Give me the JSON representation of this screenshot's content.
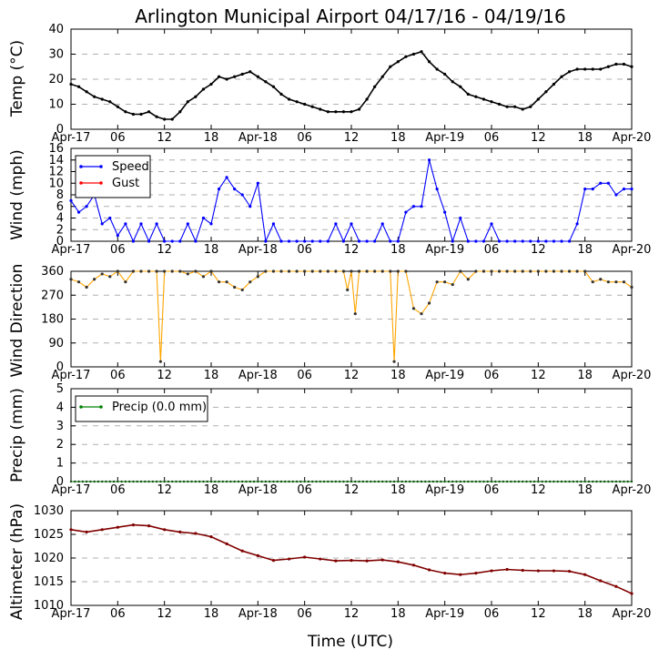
{
  "chart_data": {
    "title": "Arlington Municipal Airport 04/17/16 - 04/19/16",
    "xlabel": "Time (UTC)",
    "x_ticks": [
      "Apr-17",
      "06",
      "12",
      "18",
      "Apr-18",
      "06",
      "12",
      "18",
      "Apr-19",
      "06",
      "12",
      "18",
      "Apr-20"
    ],
    "x_range_hours": [
      0,
      72
    ],
    "panels": [
      {
        "id": "temp",
        "type": "line",
        "ylabel": "Temp ($^\\circ$C)",
        "ylabel_display": "Temp (°C)",
        "ylim": [
          0,
          40
        ],
        "yticks": [
          0,
          10,
          20,
          30,
          40
        ],
        "grid": true,
        "legend": null,
        "series": [
          {
            "name": "",
            "color": "#000000",
            "x": [
              0,
              1,
              2,
              3,
              4,
              5,
              6,
              7,
              8,
              9,
              10,
              11,
              12,
              13,
              14,
              15,
              16,
              17,
              18,
              19,
              20,
              21,
              22,
              23,
              24,
              25,
              26,
              27,
              28,
              29,
              30,
              31,
              32,
              33,
              34,
              35,
              36,
              37,
              38,
              39,
              40,
              41,
              42,
              43,
              44,
              45,
              46,
              47,
              48,
              49,
              50,
              51,
              52,
              53,
              54,
              55,
              56,
              57,
              58,
              59,
              60,
              61,
              62,
              63,
              64,
              65,
              66,
              67,
              68,
              69,
              70,
              71,
              72
            ],
            "y": [
              18,
              17,
              15,
              13,
              12,
              11,
              9,
              7,
              6,
              6,
              7,
              5,
              4,
              4,
              7,
              11,
              13,
              16,
              18,
              21,
              20,
              21,
              22,
              23,
              21,
              19,
              17,
              14,
              12,
              11,
              10,
              9,
              8,
              7,
              7,
              7,
              7,
              8,
              12,
              17,
              21,
              25,
              27,
              29,
              30,
              31,
              27,
              24,
              22,
              19,
              17,
              14,
              13,
              12,
              11,
              10,
              9,
              9,
              8,
              9,
              12,
              15,
              18,
              21,
              23,
              24,
              24,
              24,
              24,
              25,
              26,
              26,
              25
            ]
          }
        ]
      },
      {
        "id": "wind",
        "type": "line",
        "ylabel": "Wind (mph)",
        "ylim": [
          0,
          16
        ],
        "yticks": [
          0,
          2,
          4,
          6,
          8,
          10,
          12,
          14,
          16
        ],
        "grid": true,
        "legend": {
          "placement": "upper-left",
          "entries": [
            "Speed",
            "Gust"
          ]
        },
        "series": [
          {
            "name": "Speed",
            "color": "#0000ff",
            "x": [
              0,
              1,
              2,
              3,
              4,
              5,
              6,
              7,
              8,
              9,
              10,
              11,
              12,
              13,
              14,
              15,
              16,
              17,
              18,
              19,
              20,
              21,
              22,
              23,
              24,
              25,
              26,
              27,
              28,
              29,
              30,
              31,
              32,
              33,
              34,
              35,
              36,
              37,
              38,
              39,
              40,
              41,
              42,
              43,
              44,
              45,
              46,
              47,
              48,
              49,
              50,
              51,
              52,
              53,
              54,
              55,
              56,
              57,
              58,
              59,
              60,
              61,
              62,
              63,
              64,
              65,
              66,
              67,
              68,
              69,
              70,
              71,
              72
            ],
            "y": [
              7,
              5,
              6,
              8,
              3,
              4,
              1,
              3,
              0,
              3,
              0,
              3,
              0,
              0,
              0,
              3,
              0,
              4,
              3,
              9,
              11,
              9,
              8,
              6,
              10,
              0,
              3,
              0,
              0,
              0,
              0,
              0,
              0,
              0,
              3,
              0,
              3,
              0,
              0,
              0,
              3,
              0,
              0,
              5,
              6,
              6,
              14,
              9,
              5,
              0,
              4,
              0,
              0,
              0,
              3,
              0,
              0,
              0,
              0,
              0,
              0,
              0,
              0,
              0,
              0,
              3,
              9,
              9,
              10,
              10,
              8,
              9,
              9
            ]
          },
          {
            "name": "Gust",
            "color": "#ff0000",
            "x": [],
            "y": []
          }
        ]
      },
      {
        "id": "wdir",
        "type": "line",
        "ylabel": "Wind Direction",
        "ylim": [
          0,
          360
        ],
        "yticks": [
          0,
          90,
          180,
          270,
          360
        ],
        "grid": true,
        "legend": null,
        "series": [
          {
            "name": "",
            "color": "#ffa500",
            "x": [
              0,
              1,
              2,
              3,
              4,
              5,
              6,
              7,
              8,
              9,
              10,
              11,
              11.5,
              12,
              13,
              14,
              15,
              16,
              17,
              18,
              19,
              20,
              21,
              22,
              23,
              24,
              25,
              26,
              27,
              28,
              29,
              30,
              31,
              32,
              33,
              34,
              35,
              35.5,
              36,
              36.5,
              37,
              38,
              39,
              40,
              41,
              41.5,
              42,
              43,
              44,
              45,
              46,
              47,
              48,
              49,
              50,
              51,
              52,
              53,
              54,
              55,
              56,
              57,
              58,
              59,
              60,
              61,
              62,
              63,
              64,
              65,
              66,
              67,
              68,
              69,
              70,
              71,
              72
            ],
            "y": [
              330,
              320,
              300,
              330,
              350,
              340,
              360,
              320,
              360,
              360,
              360,
              360,
              20,
              360,
              360,
              360,
              350,
              360,
              340,
              360,
              320,
              320,
              300,
              290,
              320,
              340,
              360,
              360,
              360,
              360,
              360,
              360,
              360,
              360,
              360,
              360,
              360,
              290,
              360,
              200,
              360,
              360,
              360,
              360,
              360,
              20,
              360,
              360,
              220,
              200,
              240,
              320,
              320,
              310,
              360,
              330,
              360,
              360,
              360,
              360,
              360,
              360,
              360,
              360,
              360,
              360,
              360,
              360,
              360,
              360,
              360,
              320,
              330,
              320,
              320,
              320,
              300
            ]
          }
        ]
      },
      {
        "id": "precip",
        "type": "line",
        "ylabel": "Precip (mm)",
        "ylim": [
          0,
          5
        ],
        "yticks": [
          0,
          1,
          2,
          3,
          4,
          5
        ],
        "grid": true,
        "legend": {
          "placement": "upper-left",
          "entries": [
            "Precip (0.0 mm)"
          ]
        },
        "series": [
          {
            "name": "Precip (0.0 mm)",
            "color": "#008000",
            "x": [
              0,
              72
            ],
            "y": [
              0,
              0
            ]
          }
        ]
      },
      {
        "id": "alt",
        "type": "line",
        "ylabel": "Altimeter (hPa)",
        "ylim": [
          1010,
          1030
        ],
        "yticks": [
          1010,
          1015,
          1020,
          1025,
          1030
        ],
        "grid": true,
        "legend": null,
        "series": [
          {
            "name": "",
            "color": "#800000",
            "x": [
              0,
              2,
              4,
              6,
              8,
              10,
              12,
              14,
              16,
              18,
              20,
              22,
              24,
              26,
              28,
              30,
              32,
              34,
              36,
              38,
              40,
              42,
              44,
              46,
              48,
              50,
              52,
              54,
              56,
              58,
              60,
              62,
              64,
              66,
              68,
              70,
              72
            ],
            "y": [
              1026,
              1025.5,
              1026,
              1026.5,
              1027,
              1026.8,
              1026,
              1025.5,
              1025.2,
              1024.5,
              1023,
              1021.5,
              1020.5,
              1019.5,
              1019.8,
              1020.2,
              1019.8,
              1019.4,
              1019.5,
              1019.4,
              1019.6,
              1019.2,
              1018.5,
              1017.5,
              1016.8,
              1016.5,
              1016.8,
              1017.3,
              1017.6,
              1017.4,
              1017.3,
              1017.3,
              1017.2,
              1016.5,
              1015.2,
              1014.0,
              1012.5
            ]
          }
        ]
      }
    ]
  }
}
